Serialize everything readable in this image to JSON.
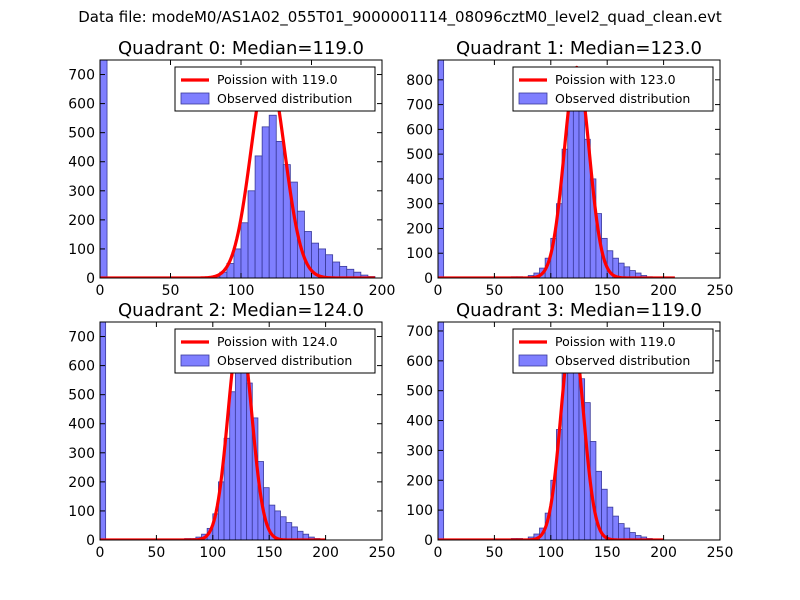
{
  "figure": {
    "suptitle": "Data file: modeM0/AS1A02_055T01_9000001114_08096cztM0_level2_quad_clean.evt"
  },
  "colors": {
    "bar_fill": "#7f7fff",
    "bar_edge": "#3a3a9a",
    "curve": "#ff0000",
    "axes": "#000000"
  },
  "chart_data": [
    {
      "type": "bar",
      "title": "Quadrant 0: Median=119.0",
      "median": 119.0,
      "legend": [
        "Poission with 119.0",
        "Observed distribution"
      ],
      "legend_position": "top-right",
      "xlim": [
        0,
        200
      ],
      "ylim": [
        0,
        750
      ],
      "xticks": [
        0,
        50,
        100,
        150,
        200
      ],
      "yticks": [
        0,
        100,
        200,
        300,
        400,
        500,
        600,
        700
      ],
      "bin_width": 5,
      "bins": [
        [
          0,
          750
        ],
        [
          80,
          5
        ],
        [
          85,
          20
        ],
        [
          90,
          50
        ],
        [
          95,
          100
        ],
        [
          100,
          190
        ],
        [
          105,
          300
        ],
        [
          110,
          420
        ],
        [
          115,
          520
        ],
        [
          120,
          560
        ],
        [
          125,
          470
        ],
        [
          130,
          390
        ],
        [
          135,
          330
        ],
        [
          140,
          230
        ],
        [
          145,
          160
        ],
        [
          150,
          120
        ],
        [
          155,
          100
        ],
        [
          160,
          80
        ],
        [
          165,
          55
        ],
        [
          170,
          40
        ],
        [
          175,
          30
        ],
        [
          180,
          20
        ],
        [
          185,
          10
        ],
        [
          190,
          5
        ]
      ],
      "poisson": {
        "mean": 119.0,
        "peak": 720,
        "sigma": 12,
        "range": [
          0,
          195
        ]
      }
    },
    {
      "type": "bar",
      "title": "Quadrant 1: Median=123.0",
      "median": 123.0,
      "legend": [
        "Poission with 123.0",
        "Observed distribution"
      ],
      "legend_position": "top-right",
      "xlim": [
        0,
        250
      ],
      "ylim": [
        0,
        880
      ],
      "xticks": [
        0,
        50,
        100,
        150,
        200,
        250
      ],
      "yticks": [
        0,
        100,
        200,
        300,
        400,
        500,
        600,
        700,
        800
      ],
      "bin_width": 5,
      "bins": [
        [
          0,
          880
        ],
        [
          65,
          5
        ],
        [
          70,
          5
        ],
        [
          80,
          10
        ],
        [
          85,
          20
        ],
        [
          90,
          40
        ],
        [
          95,
          80
        ],
        [
          100,
          160
        ],
        [
          105,
          300
        ],
        [
          110,
          520
        ],
        [
          115,
          700
        ],
        [
          120,
          800
        ],
        [
          125,
          760
        ],
        [
          130,
          560
        ],
        [
          135,
          400
        ],
        [
          140,
          260
        ],
        [
          145,
          160
        ],
        [
          150,
          110
        ],
        [
          155,
          80
        ],
        [
          160,
          60
        ],
        [
          165,
          45
        ],
        [
          170,
          30
        ],
        [
          175,
          20
        ],
        [
          180,
          10
        ],
        [
          185,
          5
        ]
      ],
      "poisson": {
        "mean": 123.0,
        "peak": 850,
        "sigma": 11,
        "range": [
          0,
          210
        ]
      }
    },
    {
      "type": "bar",
      "title": "Quadrant 2: Median=124.0",
      "median": 124.0,
      "legend": [
        "Poission with 124.0",
        "Observed distribution"
      ],
      "legend_position": "top-right",
      "xlim": [
        0,
        250
      ],
      "ylim": [
        0,
        750
      ],
      "xticks": [
        0,
        50,
        100,
        150,
        200,
        250
      ],
      "yticks": [
        0,
        100,
        200,
        300,
        400,
        500,
        600,
        700
      ],
      "bin_width": 5,
      "bins": [
        [
          0,
          750
        ],
        [
          75,
          5
        ],
        [
          80,
          5
        ],
        [
          85,
          10
        ],
        [
          90,
          20
        ],
        [
          95,
          40
        ],
        [
          100,
          90
        ],
        [
          105,
          200
        ],
        [
          110,
          350
        ],
        [
          115,
          510
        ],
        [
          120,
          640
        ],
        [
          125,
          700
        ],
        [
          130,
          540
        ],
        [
          135,
          420
        ],
        [
          140,
          270
        ],
        [
          145,
          180
        ],
        [
          150,
          120
        ],
        [
          155,
          100
        ],
        [
          160,
          80
        ],
        [
          165,
          60
        ],
        [
          170,
          45
        ],
        [
          175,
          30
        ],
        [
          180,
          20
        ],
        [
          185,
          10
        ],
        [
          190,
          5
        ]
      ],
      "poisson": {
        "mean": 124.0,
        "peak": 720,
        "sigma": 10.5,
        "range": [
          0,
          200
        ]
      }
    },
    {
      "type": "bar",
      "title": "Quadrant 3: Median=119.0",
      "median": 119.0,
      "legend": [
        "Poission with 119.0",
        "Observed distribution"
      ],
      "legend_position": "top-right",
      "xlim": [
        0,
        250
      ],
      "ylim": [
        0,
        730
      ],
      "xticks": [
        0,
        50,
        100,
        150,
        200,
        250
      ],
      "yticks": [
        0,
        100,
        200,
        300,
        400,
        500,
        600,
        700
      ],
      "bin_width": 5,
      "bins": [
        [
          0,
          730
        ],
        [
          65,
          5
        ],
        [
          70,
          5
        ],
        [
          80,
          10
        ],
        [
          85,
          20
        ],
        [
          90,
          40
        ],
        [
          95,
          90
        ],
        [
          100,
          200
        ],
        [
          105,
          370
        ],
        [
          110,
          580
        ],
        [
          115,
          660
        ],
        [
          120,
          700
        ],
        [
          125,
          540
        ],
        [
          130,
          460
        ],
        [
          135,
          330
        ],
        [
          140,
          230
        ],
        [
          145,
          170
        ],
        [
          150,
          110
        ],
        [
          155,
          80
        ],
        [
          160,
          55
        ],
        [
          165,
          40
        ],
        [
          170,
          25
        ],
        [
          175,
          15
        ],
        [
          180,
          10
        ],
        [
          185,
          5
        ]
      ],
      "poisson": {
        "mean": 119.0,
        "peak": 700,
        "sigma": 10,
        "range": [
          0,
          200
        ]
      }
    }
  ]
}
